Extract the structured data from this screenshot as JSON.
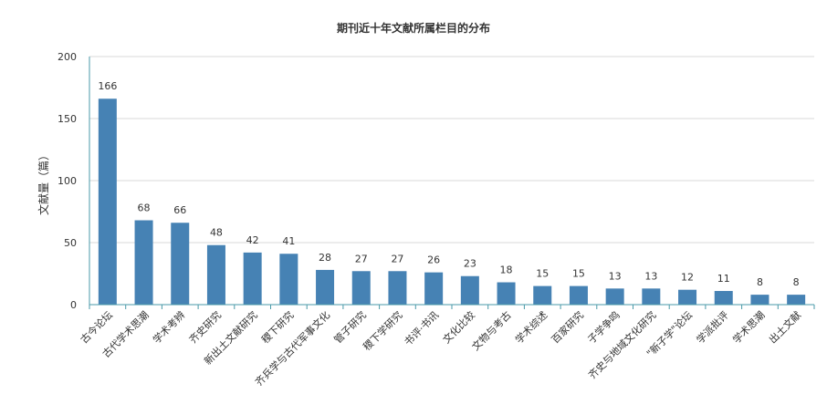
{
  "chart_data": {
    "type": "bar",
    "title": "期刊近十年文献所属栏目的分布",
    "xlabel": "",
    "ylabel": "文献量（篇）",
    "ylim": [
      0,
      200
    ],
    "yticks": [
      "0",
      "50",
      "100",
      "150",
      "200"
    ],
    "grid": true,
    "categories": [
      "古今论坛",
      "古代学术思潮",
      "学术考辨",
      "齐史研究",
      "新出土文献研究",
      "稷下研究",
      "齐兵学与古代军事文化",
      "管子研究",
      "稷下学研究",
      "书评·书讯",
      "文化比较",
      "文物与考古",
      "学术综述",
      "百家研究",
      "子学争鸣",
      "齐史与地域文化研究",
      "\"新子学\"论坛",
      "学派批评",
      "学术思潮",
      "出土文献"
    ],
    "values": [
      166,
      68,
      66,
      48,
      42,
      41,
      28,
      27,
      27,
      26,
      23,
      18,
      15,
      15,
      13,
      13,
      12,
      11,
      8,
      8
    ],
    "colors": {
      "bar": "#4682b4",
      "axis": "#4a9aa8",
      "grid": "#d9d9d9",
      "text": "#333333"
    }
  }
}
